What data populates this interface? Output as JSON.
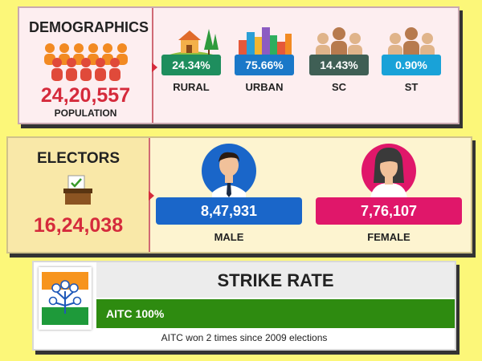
{
  "demographics": {
    "title": "DEMOGRAPHICS",
    "population_value": "24,20,557",
    "population_label": "POPULATION",
    "stats": [
      {
        "value": "24.34%",
        "label": "RURAL",
        "icon": "rural-house-icon",
        "color": "#1e8e5e"
      },
      {
        "value": "75.66%",
        "label": "URBAN",
        "icon": "city-buildings-icon",
        "color": "#1a78c8"
      },
      {
        "value": "14.43%",
        "label": "SC",
        "icon": "people-group-icon",
        "color": "#3f5f55"
      },
      {
        "value": "0.90%",
        "label": "ST",
        "icon": "people-group-icon",
        "color": "#19a2d8"
      }
    ]
  },
  "electors": {
    "title": "ELECTORS",
    "value": "16,24,038",
    "male": {
      "value": "8,47,931",
      "label": "MALE",
      "color": "#1a66c9"
    },
    "female": {
      "value": "7,76,107",
      "label": "FEMALE",
      "color": "#e0176a"
    }
  },
  "strike_rate": {
    "title": "STRIKE RATE",
    "bar_label": "AITC 100%",
    "bar_percent": 100,
    "note": "AITC won 2 times since 2009 elections"
  },
  "colors": {
    "accent_red": "#d52b3c",
    "bar_green": "#2e8b10"
  }
}
